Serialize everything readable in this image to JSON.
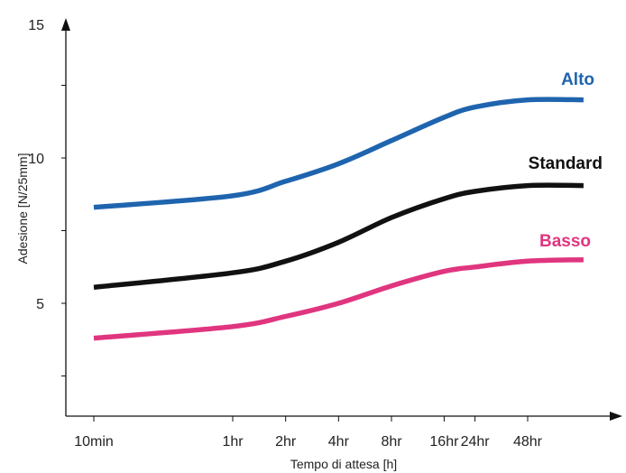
{
  "chart_data": {
    "type": "line",
    "title": "",
    "xlabel": "Tempo di attesa [h]",
    "ylabel": "Adesione [N/25mm]",
    "x_scale": "log",
    "ylim": [
      0,
      15
    ],
    "y_ticks": [
      5,
      10,
      15
    ],
    "x_ticks": [
      {
        "label": "10min",
        "hours": 0.1667
      },
      {
        "label": "1hr",
        "hours": 1
      },
      {
        "label": "2hr",
        "hours": 2
      },
      {
        "label": "4hr",
        "hours": 4
      },
      {
        "label": "8hr",
        "hours": 8
      },
      {
        "label": "16hr",
        "hours": 16
      },
      {
        "label": "24hr",
        "hours": 24
      },
      {
        "label": "48hr",
        "hours": 48
      }
    ],
    "grid": false,
    "series": [
      {
        "name": "Alto",
        "color": "#1f64ae",
        "points": [
          [
            0.1667,
            8.3
          ],
          [
            1,
            8.7
          ],
          [
            2,
            9.2
          ],
          [
            4,
            9.8
          ],
          [
            8,
            10.6
          ],
          [
            16,
            11.4
          ],
          [
            24,
            11.75
          ],
          [
            48,
            12.0
          ],
          [
            100,
            12.0
          ]
        ]
      },
      {
        "name": "Standard",
        "color": "#111111",
        "points": [
          [
            0.1667,
            5.55
          ],
          [
            1,
            6.05
          ],
          [
            2,
            6.45
          ],
          [
            4,
            7.1
          ],
          [
            8,
            7.95
          ],
          [
            16,
            8.6
          ],
          [
            24,
            8.85
          ],
          [
            48,
            9.05
          ],
          [
            100,
            9.05
          ]
        ]
      },
      {
        "name": "Basso",
        "color": "#e0357f",
        "points": [
          [
            0.1667,
            3.8
          ],
          [
            1,
            4.2
          ],
          [
            2,
            4.55
          ],
          [
            4,
            5.0
          ],
          [
            8,
            5.6
          ],
          [
            16,
            6.1
          ],
          [
            24,
            6.25
          ],
          [
            48,
            6.45
          ],
          [
            100,
            6.5
          ]
        ]
      }
    ]
  }
}
